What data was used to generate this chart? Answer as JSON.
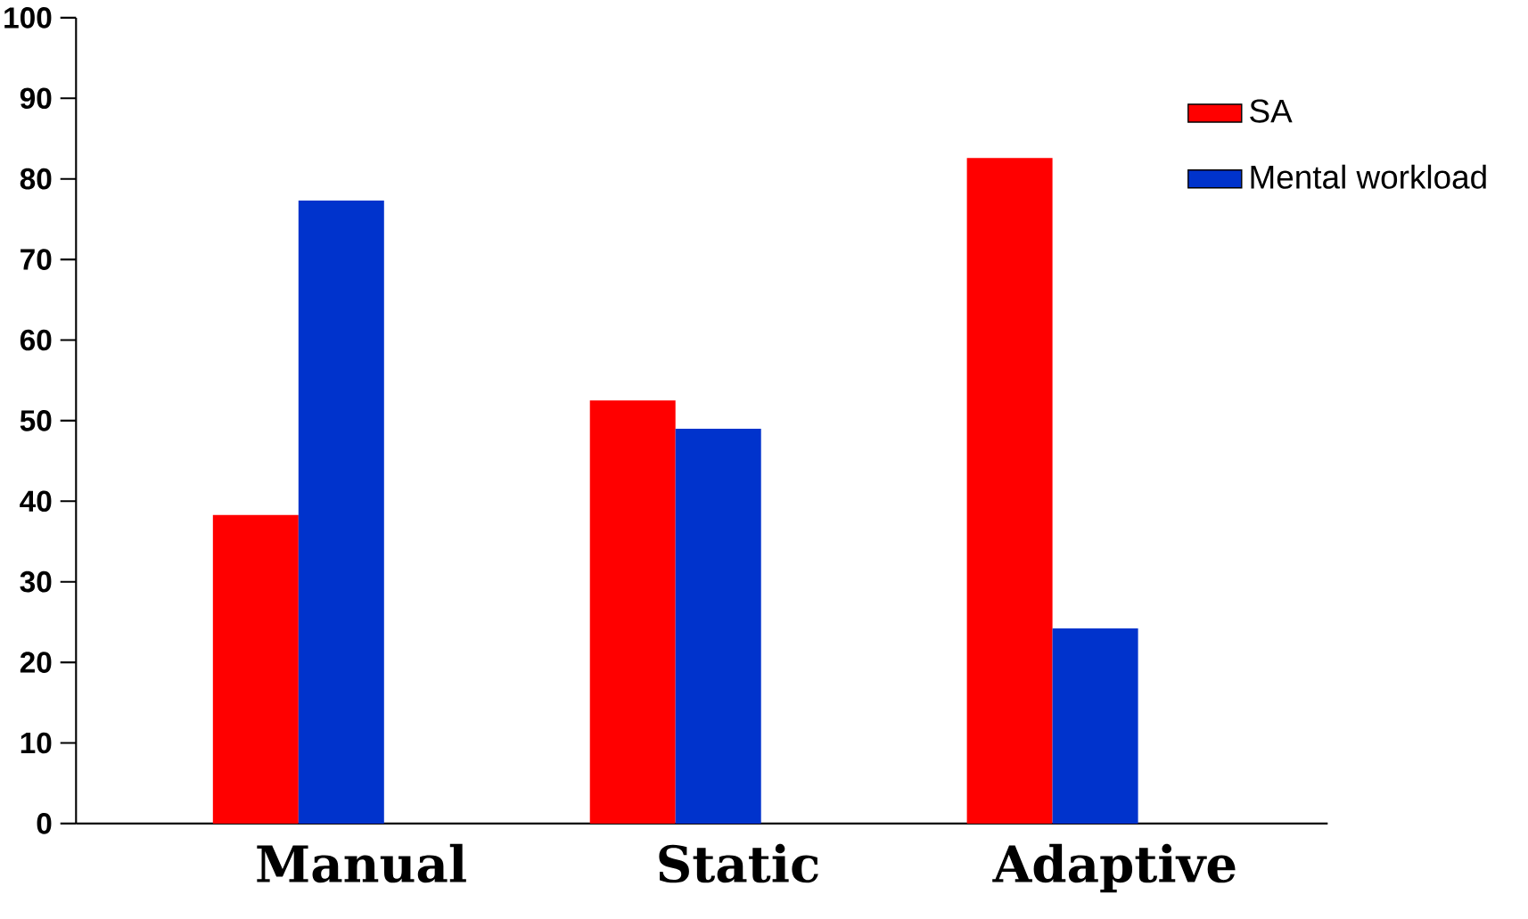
{
  "chart_data": {
    "type": "bar",
    "categories": [
      "Manual",
      "Static",
      "Adaptive"
    ],
    "series": [
      {
        "name": "SA",
        "color": "#ff0000",
        "values": [
          38.3,
          52.5,
          82.6
        ]
      },
      {
        "name": "Mental workload",
        "color": "#0033cc",
        "values": [
          77.3,
          49.0,
          24.2
        ]
      }
    ],
    "ylim": [
      0,
      100
    ],
    "yticks": [
      0,
      10,
      20,
      30,
      40,
      50,
      60,
      70,
      80,
      90,
      100
    ],
    "legend": "top right"
  }
}
